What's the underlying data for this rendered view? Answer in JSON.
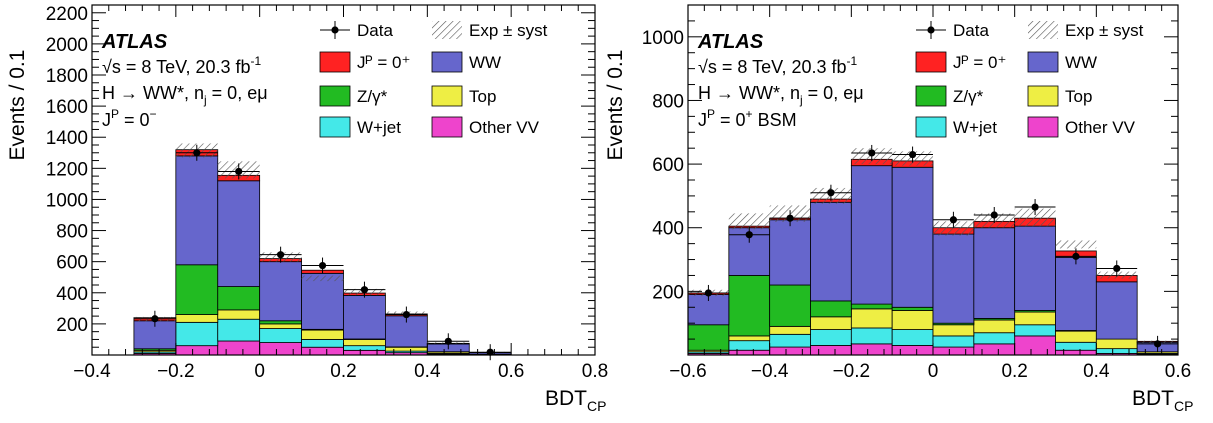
{
  "chart_data": [
    {
      "type": "bar",
      "stacked": true,
      "ylabel": "Events / 0.1",
      "xlabel_main": "BDT",
      "xlabel_sub": "CP",
      "xlim": [
        -0.4,
        0.8
      ],
      "ylim": [
        0,
        2250
      ],
      "x_ticks": [
        "−0.4",
        "−0.2",
        "0",
        "0.2",
        "0.4",
        "0.6",
        "0.8"
      ],
      "x_tick_values": [
        -0.4,
        -0.2,
        0,
        0.2,
        0.4,
        0.6,
        0.8
      ],
      "y_ticks": [
        "200",
        "400",
        "600",
        "800",
        "1000",
        "1200",
        "1400",
        "1600",
        "1800",
        "2000",
        "2200"
      ],
      "y_tick_values": [
        200,
        400,
        600,
        800,
        1000,
        1200,
        1400,
        1600,
        1800,
        2000,
        2200
      ],
      "bin_edges": [
        -0.3,
        -0.2,
        -0.1,
        0.0,
        0.1,
        0.2,
        0.3,
        0.4,
        0.5,
        0.6
      ],
      "series": [
        {
          "name": "Other VV",
          "color": "#ee44cc",
          "values": [
            10,
            60,
            90,
            80,
            50,
            30,
            15,
            5,
            2
          ]
        },
        {
          "name": "W+jet",
          "color": "#44e8e8",
          "values": [
            10,
            150,
            140,
            90,
            50,
            30,
            10,
            5,
            1
          ]
        },
        {
          "name": "Top",
          "color": "#eeee44",
          "values": [
            10,
            50,
            60,
            30,
            60,
            40,
            25,
            10,
            2
          ]
        },
        {
          "name": "Z/γ*",
          "color": "#22bb22",
          "values": [
            10,
            320,
            150,
            20,
            5,
            3,
            2,
            1,
            0
          ]
        },
        {
          "name": "WW",
          "color": "#6666cc",
          "values": [
            180,
            700,
            680,
            380,
            360,
            280,
            200,
            50,
            10
          ]
        },
        {
          "name": "Jᴾ = 0⁺",
          "color": "#ff2222",
          "values": [
            20,
            40,
            35,
            20,
            20,
            15,
            12,
            4,
            1
          ]
        }
      ],
      "syst_band": [
        [
          215,
          245
        ],
        [
          1270,
          1360
        ],
        [
          1135,
          1245
        ],
        [
          600,
          660
        ],
        [
          475,
          510
        ],
        [
          385,
          425
        ],
        [
          260,
          280
        ],
        [
          73,
          82
        ],
        [
          15,
          20
        ]
      ],
      "data": {
        "x": [
          -0.25,
          -0.15,
          -0.05,
          0.05,
          0.15,
          0.25,
          0.35,
          0.45,
          0.55
        ],
        "y": [
          233,
          1300,
          1180,
          645,
          575,
          420,
          260,
          88,
          18
        ]
      },
      "atlas_label": "ATLAS",
      "energy_label": "√s = 8 TeV, 20.3 fb",
      "energy_sup": "-1",
      "process_label": "H → WW*, n",
      "process_sub": "j",
      "process_tail": " = 0, eμ",
      "hypothesis_main": "J",
      "hypothesis_sup": "P",
      "hypothesis_tail": " = 0",
      "hypothesis_tail_sup": "−",
      "legend": [
        {
          "label": "Data",
          "kind": "data"
        },
        {
          "label": "Exp ± syst",
          "kind": "hatch"
        },
        {
          "label": "Jᴾ = 0⁺",
          "kind": "fill",
          "color": "#ff2222"
        },
        {
          "label": "WW",
          "kind": "fill",
          "color": "#6666cc"
        },
        {
          "label": "Z/γ*",
          "kind": "fill",
          "color": "#22bb22"
        },
        {
          "label": "Top",
          "kind": "fill",
          "color": "#eeee44"
        },
        {
          "label": "W+jet",
          "kind": "fill",
          "color": "#44e8e8"
        },
        {
          "label": "Other VV",
          "kind": "fill",
          "color": "#ee44cc"
        }
      ]
    },
    {
      "type": "bar",
      "stacked": true,
      "ylabel": "Events / 0.1",
      "xlabel_main": "BDT",
      "xlabel_sub": "CP",
      "xlim": [
        -0.6,
        0.6
      ],
      "ylim": [
        0,
        1100
      ],
      "x_ticks": [
        "−0.6",
        "−0.4",
        "−0.2",
        "0",
        "0.2",
        "0.4",
        "0.6"
      ],
      "x_tick_values": [
        -0.6,
        -0.4,
        -0.2,
        0,
        0.2,
        0.4,
        0.6
      ],
      "y_ticks": [
        "200",
        "400",
        "600",
        "800",
        "1000"
      ],
      "y_tick_values": [
        200,
        400,
        600,
        800,
        1000
      ],
      "bin_edges": [
        -0.6,
        -0.5,
        -0.4,
        -0.3,
        -0.2,
        -0.1,
        0.0,
        0.1,
        0.2,
        0.3,
        0.4,
        0.5,
        0.6
      ],
      "series": [
        {
          "name": "Other VV",
          "color": "#ee44cc",
          "values": [
            5,
            15,
            25,
            30,
            35,
            30,
            25,
            35,
            60,
            15,
            5,
            2
          ]
        },
        {
          "name": "W+jet",
          "color": "#44e8e8",
          "values": [
            5,
            30,
            40,
            50,
            50,
            50,
            35,
            35,
            35,
            25,
            15,
            3
          ]
        },
        {
          "name": "Top",
          "color": "#eeee44",
          "values": [
            5,
            15,
            25,
            40,
            60,
            60,
            35,
            40,
            40,
            35,
            30,
            5
          ]
        },
        {
          "name": "Z/γ*",
          "color": "#22bb22",
          "values": [
            80,
            190,
            130,
            50,
            15,
            10,
            5,
            5,
            5,
            2,
            0,
            0
          ]
        },
        {
          "name": "WW",
          "color": "#6666cc",
          "values": [
            95,
            150,
            205,
            310,
            435,
            440,
            280,
            285,
            265,
            230,
            180,
            30
          ]
        },
        {
          "name": "Jᴾ = 0⁺",
          "color": "#ff2222",
          "values": [
            5,
            5,
            5,
            10,
            20,
            20,
            20,
            20,
            25,
            20,
            20,
            3
          ]
        }
      ],
      "syst_band": [
        [
          185,
          205
        ],
        [
          395,
          445
        ],
        [
          418,
          470
        ],
        [
          475,
          525
        ],
        [
          600,
          650
        ],
        [
          595,
          640
        ],
        [
          375,
          420
        ],
        [
          400,
          445
        ],
        [
          405,
          460
        ],
        [
          335,
          360
        ],
        [
          240,
          262
        ],
        [
          35,
          45
        ]
      ],
      "data": {
        "x": [
          -0.55,
          -0.45,
          -0.35,
          -0.25,
          -0.15,
          -0.05,
          0.05,
          0.15,
          0.25,
          0.35,
          0.45,
          0.55
        ],
        "y": [
          195,
          378,
          430,
          510,
          635,
          630,
          425,
          440,
          465,
          310,
          272,
          35
        ]
      },
      "atlas_label": "ATLAS",
      "energy_label": "√s = 8 TeV, 20.3 fb",
      "energy_sup": "-1",
      "process_label": "H → WW*, n",
      "process_sub": "j",
      "process_tail": " = 0, eμ",
      "hypothesis_main": "J",
      "hypothesis_sup": "P",
      "hypothesis_tail": " = 0",
      "hypothesis_tail_sup": "+",
      "hypothesis_suffix": " BSM",
      "legend": [
        {
          "label": "Data",
          "kind": "data"
        },
        {
          "label": "Exp ± syst",
          "kind": "hatch"
        },
        {
          "label": "Jᴾ = 0⁺",
          "kind": "fill",
          "color": "#ff2222"
        },
        {
          "label": "WW",
          "kind": "fill",
          "color": "#6666cc"
        },
        {
          "label": "Z/γ*",
          "kind": "fill",
          "color": "#22bb22"
        },
        {
          "label": "Top",
          "kind": "fill",
          "color": "#eeee44"
        },
        {
          "label": "W+jet",
          "kind": "fill",
          "color": "#44e8e8"
        },
        {
          "label": "Other VV",
          "kind": "fill",
          "color": "#ee44cc"
        }
      ]
    }
  ]
}
